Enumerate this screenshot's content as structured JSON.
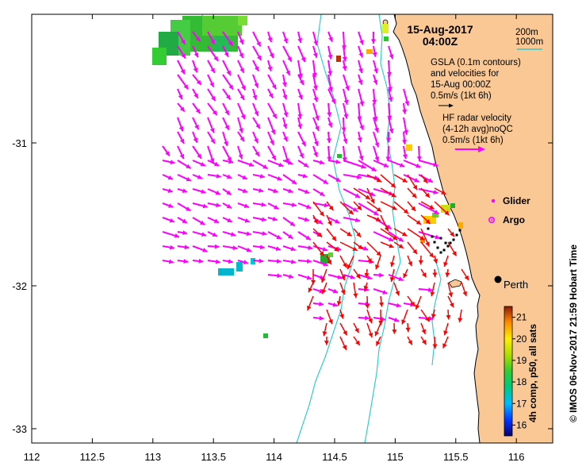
{
  "title": {
    "date": "15-Aug-2017",
    "time": "04:00Z"
  },
  "depth_legend": {
    "shallow": "200m",
    "deep": "1000m",
    "color": "#33cccc"
  },
  "gsla_legend": {
    "line1": "GSLA (0.1m contours)",
    "line2": "and velocities for",
    "line3": "15-Aug 00:00Z",
    "scale": "0.5m/s (1kt 6h)"
  },
  "hf_legend": {
    "line1": "HF radar velocity",
    "line2": "(4-12h avg)noQC",
    "scale": "0.5m/s (1kt 6h)",
    "color": "#ff00ff"
  },
  "markers": {
    "glider_label": "Glider",
    "argo_label": "Argo",
    "city_label": "Perth",
    "glider_color": "#ff00ff",
    "argo_color": "#ff00ff"
  },
  "colorbar": {
    "title": "4h comp, p50, all sats",
    "ticks": [
      "21",
      "20",
      "19",
      "18",
      "17",
      "16"
    ],
    "min": 15.5,
    "max": 21.5
  },
  "credit": "© IMOS 06-Nov-2017 21:59 Hobart Time",
  "chart_data": {
    "type": "map",
    "x_axis": {
      "ticks": [
        "112",
        "112.5",
        "113",
        "113.5",
        "114",
        "114.5",
        "115",
        "115.5",
        "116"
      ],
      "range": [
        112,
        116.3
      ]
    },
    "y_axis": {
      "ticks": [
        "-31",
        "-32",
        "-33"
      ],
      "range": [
        -33.1,
        -30.1
      ]
    },
    "colors": {
      "land": "#f9c895",
      "hf_radar": "#ff00ff",
      "gsla_vectors": "#000000",
      "glider_track": "#000000",
      "bathymetry": "#33cccc",
      "red_vectors": "#ff0000"
    }
  }
}
